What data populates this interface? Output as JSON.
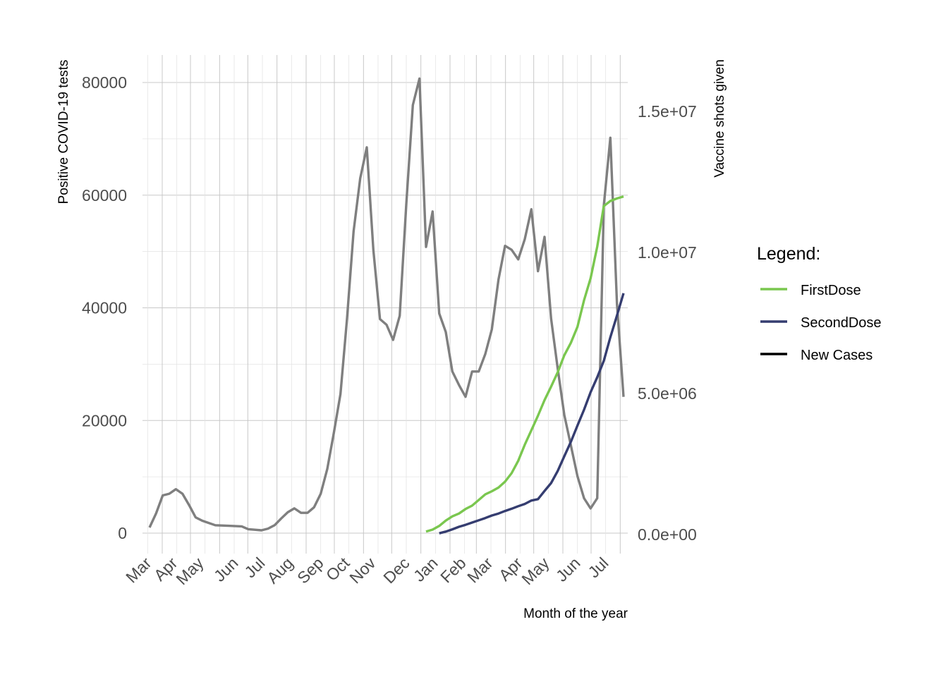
{
  "chart_data": {
    "type": "line",
    "xlabel": "Month of the year",
    "ylabel": "Positive COVID-19 tests",
    "y2label": "Vaccine shots given",
    "ylim": [
      -4500,
      85000
    ],
    "y2lim": [
      -900000,
      17000000
    ],
    "grid": true,
    "x_ticks": [
      "Mar",
      "Apr",
      "May",
      "Jun",
      "Jul",
      "Aug",
      "Sep",
      "Oct",
      "Nov",
      "Dec",
      "Jan",
      "Feb",
      "Mar",
      "Apr",
      "May",
      "Jun",
      "Jul"
    ],
    "y_ticks": [
      0,
      20000,
      40000,
      60000,
      80000
    ],
    "y_tick_labels": [
      "0",
      "20000",
      "40000",
      "60000",
      "80000"
    ],
    "y2_ticks": [
      0,
      5000000,
      10000000,
      15000000
    ],
    "y2_tick_labels": [
      "0.0e+00",
      "5.0e+06",
      "1.0e+07",
      "1.5e+07"
    ],
    "legend": {
      "title": "Legend:",
      "position": "right",
      "entries": [
        {
          "label": "FirstDose",
          "color": "#7ac74f"
        },
        {
          "label": "SecondDose",
          "color": "#353d70"
        },
        {
          "label": "New Cases",
          "color": "#000000"
        }
      ]
    },
    "series": [
      {
        "name": "New Cases",
        "axis": "left",
        "color": "#7f7f7f",
        "x": [
          "2020-03-08",
          "2020-03-15",
          "2020-03-22",
          "2020-03-29",
          "2020-04-05",
          "2020-04-12",
          "2020-04-19",
          "2020-04-26",
          "2020-05-03",
          "2020-05-17",
          "2020-05-31",
          "2020-06-14",
          "2020-06-21",
          "2020-06-28",
          "2020-07-05",
          "2020-07-12",
          "2020-07-19",
          "2020-07-26",
          "2020-08-02",
          "2020-08-09",
          "2020-08-16",
          "2020-08-23",
          "2020-08-30",
          "2020-09-06",
          "2020-09-13",
          "2020-09-20",
          "2020-09-27",
          "2020-10-04",
          "2020-10-11",
          "2020-10-18",
          "2020-10-25",
          "2020-11-01",
          "2020-11-08",
          "2020-11-15",
          "2020-11-22",
          "2020-11-29",
          "2020-12-06",
          "2020-12-13",
          "2020-12-20",
          "2020-12-27",
          "2021-01-03",
          "2021-01-10",
          "2021-01-17",
          "2021-01-24",
          "2021-01-31",
          "2021-02-07",
          "2021-02-14",
          "2021-02-21",
          "2021-02-28",
          "2021-03-07",
          "2021-03-14",
          "2021-03-21",
          "2021-03-28",
          "2021-04-04",
          "2021-04-11",
          "2021-04-18",
          "2021-04-25",
          "2021-05-02",
          "2021-05-09",
          "2021-05-16",
          "2021-05-23",
          "2021-05-30",
          "2021-06-06",
          "2021-06-13",
          "2021-06-20",
          "2021-06-27",
          "2021-07-04",
          "2021-07-11",
          "2021-07-18",
          "2021-07-25"
        ],
        "values": [
          1000,
          3500,
          6700,
          7000,
          7800,
          7000,
          5000,
          2800,
          2200,
          1400,
          1300,
          1200,
          700,
          600,
          500,
          800,
          1400,
          2600,
          3700,
          4400,
          3600,
          3600,
          4600,
          7000,
          11400,
          17800,
          24700,
          38100,
          53600,
          63000,
          68500,
          50300,
          38000,
          37000,
          34300,
          38600,
          58400,
          76000,
          80700,
          50800,
          57100,
          39000,
          35700,
          28700,
          26300,
          24200,
          28700,
          28700,
          31800,
          36200,
          45000,
          51000,
          50300,
          48600,
          52200,
          57500,
          46500,
          52600,
          38100,
          29200,
          21000,
          15600,
          10100,
          6200,
          4400,
          6200,
          58100,
          70200,
          40700,
          24200
        ]
      },
      {
        "name": "FirstDose",
        "axis": "right",
        "color": "#7ac74f",
        "x": [
          "2020-12-27",
          "2021-01-03",
          "2021-01-10",
          "2021-01-17",
          "2021-01-24",
          "2021-01-31",
          "2021-02-07",
          "2021-02-14",
          "2021-02-21",
          "2021-02-28",
          "2021-03-07",
          "2021-03-14",
          "2021-03-21",
          "2021-03-28",
          "2021-04-04",
          "2021-04-11",
          "2021-04-18",
          "2021-04-25",
          "2021-05-02",
          "2021-05-09",
          "2021-05-16",
          "2021-05-23",
          "2021-05-30",
          "2021-06-06",
          "2021-06-13",
          "2021-06-20",
          "2021-06-27",
          "2021-07-04",
          "2021-07-11",
          "2021-07-18",
          "2021-07-25"
        ],
        "values": [
          80000,
          150000,
          280000,
          470000,
          620000,
          720000,
          880000,
          1000000,
          1200000,
          1400000,
          1510000,
          1640000,
          1850000,
          2150000,
          2590000,
          3160000,
          3670000,
          4190000,
          4740000,
          5220000,
          5730000,
          6330000,
          6770000,
          7340000,
          8280000,
          9060000,
          10180000,
          11620000,
          11800000,
          11890000,
          11960000
        ]
      },
      {
        "name": "SecondDose",
        "axis": "right",
        "color": "#353d70",
        "x": [
          "2021-01-10",
          "2021-01-17",
          "2021-01-24",
          "2021-01-31",
          "2021-02-07",
          "2021-02-14",
          "2021-02-21",
          "2021-02-28",
          "2021-03-07",
          "2021-03-14",
          "2021-03-21",
          "2021-03-28",
          "2021-04-04",
          "2021-04-11",
          "2021-04-18",
          "2021-04-25",
          "2021-05-02",
          "2021-05-09",
          "2021-05-16",
          "2021-05-23",
          "2021-05-30",
          "2021-06-06",
          "2021-06-13",
          "2021-06-20",
          "2021-06-27",
          "2021-07-04",
          "2021-07-11",
          "2021-07-18",
          "2021-07-25"
        ],
        "values": [
          20000,
          80000,
          160000,
          250000,
          320000,
          400000,
          480000,
          560000,
          650000,
          720000,
          810000,
          890000,
          980000,
          1060000,
          1180000,
          1230000,
          1520000,
          1800000,
          2230000,
          2750000,
          3260000,
          3840000,
          4400000,
          5020000,
          5550000,
          6130000,
          6970000,
          7740000,
          8530000
        ]
      }
    ]
  }
}
